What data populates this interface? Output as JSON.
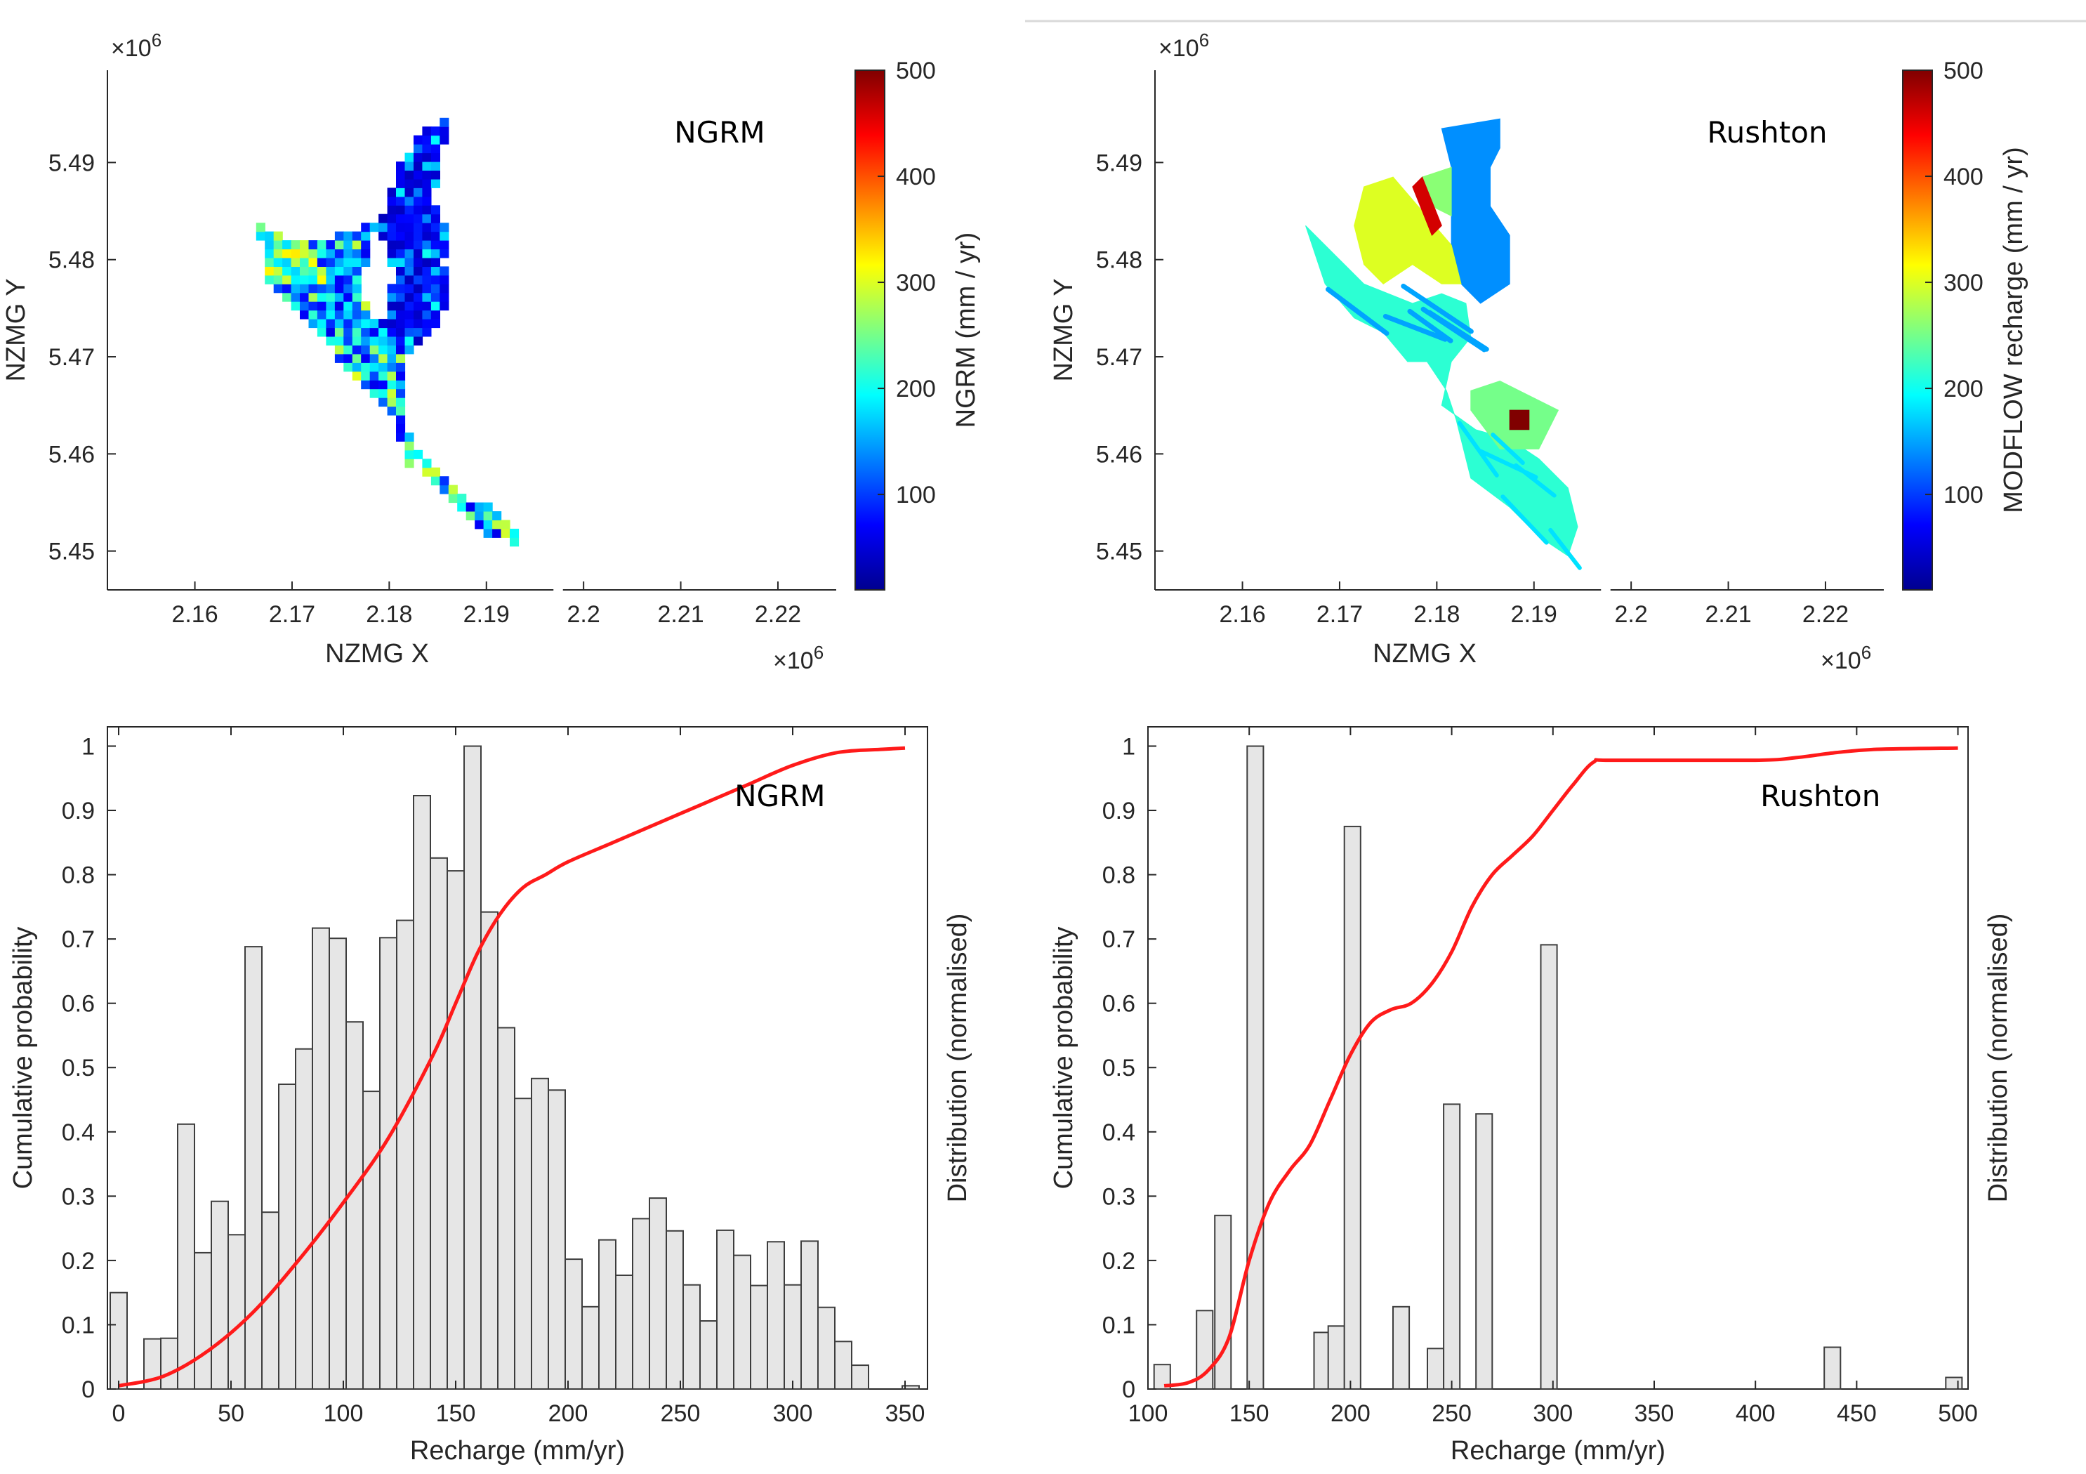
{
  "figure_top_rule": true,
  "colors": {
    "cdf": "#ff1a1a",
    "bar_fill": "#e6e6e6",
    "bar_edge": "#3d3d3d",
    "axis": "#262626"
  },
  "chart_data": [
    {
      "id": "map-ngrm",
      "type": "heatmap",
      "annotation": "NGRM",
      "xlabel": "NZMG X",
      "ylabel": "NZMG Y",
      "x_multiplier": "×10",
      "x_multiplier_exp": "6",
      "y_multiplier": "×10",
      "y_multiplier_exp": "6",
      "xlim": [
        2.151,
        2.226
      ],
      "ylim": [
        5.446,
        5.4995
      ],
      "xticks": [
        "2.16",
        "2.17",
        "2.18",
        "2.19",
        "2.2",
        "2.21",
        "2.22"
      ],
      "yticks": [
        "5.45",
        "5.46",
        "5.47",
        "5.48",
        "5.49"
      ],
      "colorbar": {
        "label": "NGRM (mm / yr)",
        "range": [
          10,
          500
        ],
        "ticks": [
          "100",
          "200",
          "300",
          "400",
          "500"
        ]
      },
      "style": "pixel-grid",
      "region_polygons": [
        {
          "value": 60,
          "points": [
            [
              2.1835,
              5.4935
            ],
            [
              2.186,
              5.4945
            ],
            [
              2.1855,
              5.491
            ],
            [
              2.1845,
              5.486
            ],
            [
              2.1855,
              5.4835
            ],
            [
              2.1865,
              5.4825
            ],
            [
              2.1855,
              5.4795
            ],
            [
              2.1865,
              5.4755
            ],
            [
              2.1835,
              5.4715
            ],
            [
              2.1815,
              5.4695
            ],
            [
              2.179,
              5.4725
            ],
            [
              2.1805,
              5.478
            ],
            [
              2.179,
              5.4835
            ],
            [
              2.181,
              5.4895
            ],
            [
              2.1835,
              5.4935
            ]
          ]
        },
        {
          "value": 120,
          "points": [
            [
              2.1795,
              5.4895
            ],
            [
              2.179,
              5.4845
            ],
            [
              2.175,
              5.4825
            ],
            [
              2.1715,
              5.4815
            ],
            [
              2.1665,
              5.4835
            ],
            [
              2.1675,
              5.478
            ],
            [
              2.1725,
              5.473
            ],
            [
              2.176,
              5.468
            ],
            [
              2.1805,
              5.464
            ],
            [
              2.182,
              5.4585
            ],
            [
              2.1835,
              5.4595
            ],
            [
              2.1875,
              5.4555
            ],
            [
              2.1905,
              5.4545
            ],
            [
              2.193,
              5.4525
            ],
            [
              2.1935,
              5.4505
            ],
            [
              2.1905,
              5.4515
            ],
            [
              2.1875,
              5.4545
            ],
            [
              2.184,
              5.4575
            ],
            [
              2.182,
              5.4625
            ],
            [
              2.1815,
              5.4695
            ],
            [
              2.1775,
              5.4755
            ],
            [
              2.1775,
              5.479
            ],
            [
              2.179,
              5.4845
            ],
            [
              2.1795,
              5.4895
            ]
          ]
        },
        {
          "value": 300,
          "points": [
            [
              2.1665,
              5.4835
            ],
            [
              2.1715,
              5.4815
            ],
            [
              2.1745,
              5.4775
            ],
            [
              2.17,
              5.477
            ],
            [
              2.1675,
              5.478
            ],
            [
              2.1665,
              5.4835
            ]
          ]
        }
      ]
    },
    {
      "id": "map-rushton",
      "type": "heatmap",
      "annotation": "Rushton",
      "xlabel": "NZMG X",
      "ylabel": "NZMG Y",
      "x_multiplier": "×10",
      "x_multiplier_exp": "6",
      "y_multiplier": "×10",
      "y_multiplier_exp": "6",
      "xlim": [
        2.151,
        2.226
      ],
      "ylim": [
        5.446,
        5.4995
      ],
      "xticks": [
        "2.16",
        "2.17",
        "2.18",
        "2.19",
        "2.2",
        "2.21",
        "2.22"
      ],
      "yticks": [
        "5.45",
        "5.46",
        "5.47",
        "5.48",
        "5.49"
      ],
      "colorbar": {
        "label": "MODFLOW recharge (mm / yr)",
        "range": [
          10,
          500
        ],
        "ticks": [
          "100",
          "200",
          "300",
          "400",
          "500"
        ]
      },
      "style": "zones",
      "region_polygons": [
        {
          "value": 140,
          "points": [
            [
              2.1815,
              5.4895
            ],
            [
              2.1805,
              5.4935
            ],
            [
              2.1865,
              5.4945
            ],
            [
              2.1865,
              5.4915
            ],
            [
              2.1855,
              5.4895
            ],
            [
              2.1855,
              5.4855
            ],
            [
              2.1875,
              5.4825
            ],
            [
              2.1875,
              5.4775
            ],
            [
              2.1845,
              5.4755
            ],
            [
              2.1825,
              5.4775
            ],
            [
              2.1815,
              5.4815
            ],
            [
              2.1815,
              5.4895
            ]
          ]
        },
        {
          "value": 215,
          "points": [
            [
              2.1665,
              5.4835
            ],
            [
              2.1695,
              5.4805
            ],
            [
              2.1725,
              5.4775
            ],
            [
              2.1775,
              5.4755
            ],
            [
              2.1805,
              5.4765
            ],
            [
              2.183,
              5.4755
            ],
            [
              2.1835,
              5.472
            ],
            [
              2.1815,
              5.4695
            ],
            [
              2.1805,
              5.465
            ],
            [
              2.184,
              5.4625
            ],
            [
              2.1875,
              5.4615
            ],
            [
              2.1905,
              5.4595
            ],
            [
              2.1935,
              5.4565
            ],
            [
              2.1945,
              5.4525
            ],
            [
              2.1935,
              5.4495
            ],
            [
              2.1905,
              5.4515
            ],
            [
              2.1875,
              5.4545
            ],
            [
              2.1835,
              5.4575
            ],
            [
              2.182,
              5.4635
            ],
            [
              2.181,
              5.4665
            ],
            [
              2.179,
              5.4695
            ],
            [
              2.177,
              5.4695
            ],
            [
              2.1745,
              5.4725
            ],
            [
              2.1715,
              5.474
            ],
            [
              2.1685,
              5.4775
            ],
            [
              2.1665,
              5.4835
            ]
          ]
        },
        {
          "value": 300,
          "points": [
            [
              2.1725,
              5.4875
            ],
            [
              2.1755,
              5.4885
            ],
            [
              2.1815,
              5.4815
            ],
            [
              2.1825,
              5.4775
            ],
            [
              2.1805,
              5.4775
            ],
            [
              2.1775,
              5.4795
            ],
            [
              2.1745,
              5.4775
            ],
            [
              2.1725,
              5.4795
            ],
            [
              2.1715,
              5.4835
            ],
            [
              2.1725,
              5.4875
            ]
          ]
        },
        {
          "value": 260,
          "points": [
            [
              2.1785,
              5.4885
            ],
            [
              2.1815,
              5.4895
            ],
            [
              2.1815,
              5.4845
            ],
            [
              2.1795,
              5.4855
            ],
            [
              2.1785,
              5.4885
            ]
          ]
        },
        {
          "value": 460,
          "points": [
            [
              2.1775,
              5.4875
            ],
            [
              2.1785,
              5.4885
            ],
            [
              2.1805,
              5.4835
            ],
            [
              2.1795,
              5.4825
            ],
            [
              2.1775,
              5.4875
            ]
          ]
        },
        {
          "value": 250,
          "points": [
            [
              2.1835,
              5.4665
            ],
            [
              2.1865,
              5.4675
            ],
            [
              2.1885,
              5.4665
            ],
            [
              2.1925,
              5.4645
            ],
            [
              2.1905,
              5.4605
            ],
            [
              2.1865,
              5.4605
            ],
            [
              2.1835,
              5.4645
            ],
            [
              2.1835,
              5.4665
            ]
          ]
        },
        {
          "value": 500,
          "points": [
            [
              2.1875,
              5.4645
            ],
            [
              2.1895,
              5.4645
            ],
            [
              2.1895,
              5.4625
            ],
            [
              2.1875,
              5.4625
            ],
            [
              2.1875,
              5.4645
            ]
          ]
        }
      ]
    },
    {
      "id": "hist-ngrm",
      "type": "bar",
      "annotation": "NGRM",
      "xlabel": "Recharge (mm/yr)",
      "ylabel": "Cumulative probability",
      "ylabel_right": "Distribution (normalised)",
      "xlim": [
        -5,
        360
      ],
      "ylim": [
        0,
        1.03
      ],
      "xticks": [
        0,
        50,
        100,
        150,
        200,
        250,
        300,
        350
      ],
      "xtick_labels": [
        "0",
        "50",
        "100",
        "150",
        "200",
        "250",
        "300",
        "350"
      ],
      "yticks": [
        0,
        0.1,
        0.2,
        0.3,
        0.4,
        0.5,
        0.6,
        0.7,
        0.8,
        0.9,
        1
      ],
      "ytick_labels": [
        "0",
        "0.1",
        "0.2",
        "0.3",
        "0.4",
        "0.5",
        "0.6",
        "0.7",
        "0.8",
        "0.9",
        "1"
      ],
      "bin_width": 7.5,
      "bin_centers": [
        0,
        15,
        22.5,
        30,
        37.5,
        45,
        52.5,
        60,
        67.5,
        75,
        82.5,
        90,
        97.5,
        105,
        112.5,
        120,
        127.5,
        135,
        142.5,
        150,
        157.5,
        165,
        172.5,
        180,
        187.5,
        195,
        202.5,
        210,
        217.5,
        225,
        232.5,
        240,
        247.5,
        255,
        262.5,
        270,
        277.5,
        285,
        292.5,
        300,
        307.5,
        315,
        322.5,
        330,
        352.5
      ],
      "values": [
        0.15,
        0.078,
        0.079,
        0.412,
        0.212,
        0.292,
        0.24,
        0.688,
        0.275,
        0.474,
        0.529,
        0.717,
        0.701,
        0.571,
        0.463,
        0.702,
        0.729,
        0.923,
        0.826,
        0.806,
        1.0,
        0.742,
        0.562,
        0.452,
        0.483,
        0.465,
        0.202,
        0.128,
        0.232,
        0.177,
        0.265,
        0.297,
        0.246,
        0.162,
        0.106,
        0.247,
        0.208,
        0.161,
        0.229,
        0.162,
        0.23,
        0.127,
        0.074,
        0.037,
        0.005
      ],
      "cdf": {
        "x": [
          0,
          20,
          40,
          60,
          80,
          100,
          120,
          140,
          150,
          160,
          170,
          180,
          190,
          200,
          220,
          240,
          260,
          280,
          300,
          320,
          340,
          350
        ],
        "y": [
          0.005,
          0.02,
          0.06,
          0.12,
          0.2,
          0.29,
          0.39,
          0.52,
          0.6,
          0.68,
          0.74,
          0.78,
          0.8,
          0.82,
          0.85,
          0.88,
          0.91,
          0.94,
          0.97,
          0.99,
          0.995,
          0.997
        ]
      }
    },
    {
      "id": "hist-rushton",
      "type": "bar",
      "annotation": "Rushton",
      "xlabel": "Recharge (mm/yr)",
      "ylabel": "Cumulative probability",
      "ylabel_right": "Distribution (normalised)",
      "xlim": [
        100,
        505
      ],
      "ylim": [
        0,
        1.03
      ],
      "xticks": [
        100,
        150,
        200,
        250,
        300,
        350,
        400,
        450,
        500
      ],
      "xtick_labels": [
        "100",
        "150",
        "200",
        "250",
        "300",
        "350",
        "400",
        "450",
        "500"
      ],
      "yticks": [
        0,
        0.1,
        0.2,
        0.3,
        0.4,
        0.5,
        0.6,
        0.7,
        0.8,
        0.9,
        1
      ],
      "ytick_labels": [
        "0",
        "0.1",
        "0.2",
        "0.3",
        "0.4",
        "0.5",
        "0.6",
        "0.7",
        "0.8",
        "0.9",
        "1"
      ],
      "bin_width": 8,
      "bin_centers": [
        107,
        128,
        137,
        153,
        186,
        193,
        201,
        225,
        242,
        250,
        266,
        298,
        438,
        498
      ],
      "values": [
        0.038,
        0.122,
        0.27,
        1.0,
        0.088,
        0.098,
        0.875,
        0.128,
        0.063,
        0.443,
        0.428,
        0.691,
        0.065,
        0.018
      ],
      "cdf": {
        "x": [
          108,
          120,
          130,
          140,
          150,
          160,
          170,
          180,
          190,
          200,
          210,
          220,
          230,
          240,
          250,
          260,
          270,
          280,
          290,
          300,
          310,
          320,
          330,
          400,
          420,
          440,
          460,
          500
        ],
        "y": [
          0.005,
          0.01,
          0.03,
          0.08,
          0.2,
          0.29,
          0.34,
          0.38,
          0.45,
          0.52,
          0.57,
          0.59,
          0.6,
          0.63,
          0.68,
          0.75,
          0.8,
          0.83,
          0.86,
          0.9,
          0.94,
          0.975,
          0.978,
          0.978,
          0.982,
          0.99,
          0.995,
          0.997
        ]
      }
    }
  ]
}
